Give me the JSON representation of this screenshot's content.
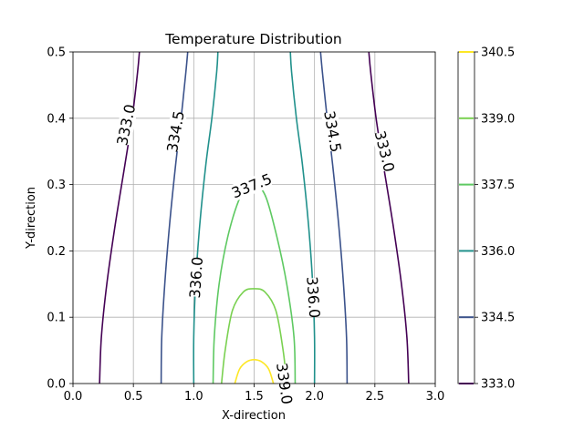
{
  "chart_data": {
    "type": "contour",
    "title": "Temperature Distribution",
    "xlabel": "X-direction",
    "ylabel": "Y-direction",
    "xlim": [
      0.0,
      3.0
    ],
    "ylim": [
      0.0,
      0.5
    ],
    "xticks": [
      "0.0",
      "0.5",
      "1.0",
      "1.5",
      "2.0",
      "2.5",
      "3.0"
    ],
    "yticks": [
      "0.0",
      "0.1",
      "0.2",
      "0.3",
      "0.4",
      "0.5"
    ],
    "grid": true,
    "colorbar": {
      "range": [
        333.0,
        340.5
      ],
      "ticks": [
        "333.0",
        "334.5",
        "336.0",
        "337.5",
        "339.0",
        "340.5"
      ]
    },
    "levels": [
      {
        "value": 333.0,
        "label": "333.0",
        "color": "#440154",
        "lines": [
          [
            [
              0.22,
              0.0
            ],
            [
              0.235,
              0.07
            ],
            [
              0.28,
              0.15
            ],
            [
              0.35,
              0.24
            ],
            [
              0.43,
              0.33
            ],
            [
              0.49,
              0.4
            ],
            [
              0.535,
              0.47
            ],
            [
              0.55,
              0.5
            ]
          ],
          [
            [
              2.78,
              0.0
            ],
            [
              2.765,
              0.07
            ],
            [
              2.72,
              0.15
            ],
            [
              2.65,
              0.24
            ],
            [
              2.57,
              0.33
            ],
            [
              2.51,
              0.4
            ],
            [
              2.465,
              0.47
            ],
            [
              2.45,
              0.5
            ]
          ]
        ]
      },
      {
        "value": 334.5,
        "label": "334.5",
        "color": "#3b528b",
        "lines": [
          [
            [
              0.73,
              0.0
            ],
            [
              0.735,
              0.07
            ],
            [
              0.76,
              0.15
            ],
            [
              0.8,
              0.24
            ],
            [
              0.85,
              0.33
            ],
            [
              0.895,
              0.4
            ],
            [
              0.935,
              0.47
            ],
            [
              0.95,
              0.5
            ]
          ],
          [
            [
              2.27,
              0.0
            ],
            [
              2.265,
              0.07
            ],
            [
              2.24,
              0.15
            ],
            [
              2.2,
              0.24
            ],
            [
              2.15,
              0.33
            ],
            [
              2.105,
              0.4
            ],
            [
              2.065,
              0.47
            ],
            [
              2.05,
              0.5
            ]
          ]
        ]
      },
      {
        "value": 336.0,
        "label": "336.0",
        "color": "#21918c",
        "lines": [
          [
            [
              1.0,
              0.0
            ],
            [
              1.0,
              0.07
            ],
            [
              1.015,
              0.15
            ],
            [
              1.05,
              0.24
            ],
            [
              1.1,
              0.33
            ],
            [
              1.15,
              0.4
            ],
            [
              1.19,
              0.47
            ],
            [
              1.2,
              0.5
            ]
          ],
          [
            [
              2.0,
              0.0
            ],
            [
              2.0,
              0.07
            ],
            [
              1.985,
              0.15
            ],
            [
              1.95,
              0.24
            ],
            [
              1.9,
              0.33
            ],
            [
              1.85,
              0.4
            ],
            [
              1.81,
              0.47
            ],
            [
              1.8,
              0.5
            ]
          ]
        ]
      },
      {
        "value": 337.5,
        "label": "337.5",
        "color": "#5ec962",
        "lines": [
          [
            [
              1.16,
              0.0
            ],
            [
              1.17,
              0.07
            ],
            [
              1.21,
              0.15
            ],
            [
              1.28,
              0.22
            ],
            [
              1.37,
              0.275
            ],
            [
              1.45,
              0.3
            ],
            [
              1.52,
              0.3
            ],
            [
              1.6,
              0.28
            ],
            [
              1.69,
              0.22
            ],
            [
              1.77,
              0.15
            ],
            [
              1.83,
              0.07
            ],
            [
              1.84,
              0.0
            ]
          ]
        ]
      },
      {
        "value": 339.0,
        "label": "339.0",
        "color": "#7ad151",
        "lines": [
          [
            [
              1.23,
              0.0
            ],
            [
              1.26,
              0.05
            ],
            [
              1.32,
              0.11
            ],
            [
              1.41,
              0.138
            ],
            [
              1.5,
              0.143
            ],
            [
              1.59,
              0.138
            ],
            [
              1.68,
              0.11
            ],
            [
              1.74,
              0.05
            ],
            [
              1.77,
              0.0
            ]
          ]
        ]
      },
      {
        "value": 340.5,
        "label": "340.5",
        "color": "#fde725",
        "lines": [
          [
            [
              1.34,
              0.0
            ],
            [
              1.38,
              0.022
            ],
            [
              1.44,
              0.033
            ],
            [
              1.5,
              0.036
            ],
            [
              1.56,
              0.033
            ],
            [
              1.62,
              0.022
            ],
            [
              1.66,
              0.0
            ]
          ]
        ]
      }
    ],
    "contour_labels": [
      {
        "text": "333.0",
        "x": 0.44,
        "y": 0.39,
        "angle": -78
      },
      {
        "text": "333.0",
        "x": 2.58,
        "y": 0.35,
        "angle": 76
      },
      {
        "text": "334.5",
        "x": 0.85,
        "y": 0.38,
        "angle": -80
      },
      {
        "text": "334.5",
        "x": 2.15,
        "y": 0.38,
        "angle": 80
      },
      {
        "text": "336.0",
        "x": 1.02,
        "y": 0.16,
        "angle": -86
      },
      {
        "text": "336.0",
        "x": 1.99,
        "y": 0.13,
        "angle": 86
      },
      {
        "text": "337.5",
        "x": 1.48,
        "y": 0.298,
        "angle": -22
      },
      {
        "text": "339.0",
        "x": 1.75,
        "y": 0.0,
        "angle": 82
      }
    ]
  }
}
